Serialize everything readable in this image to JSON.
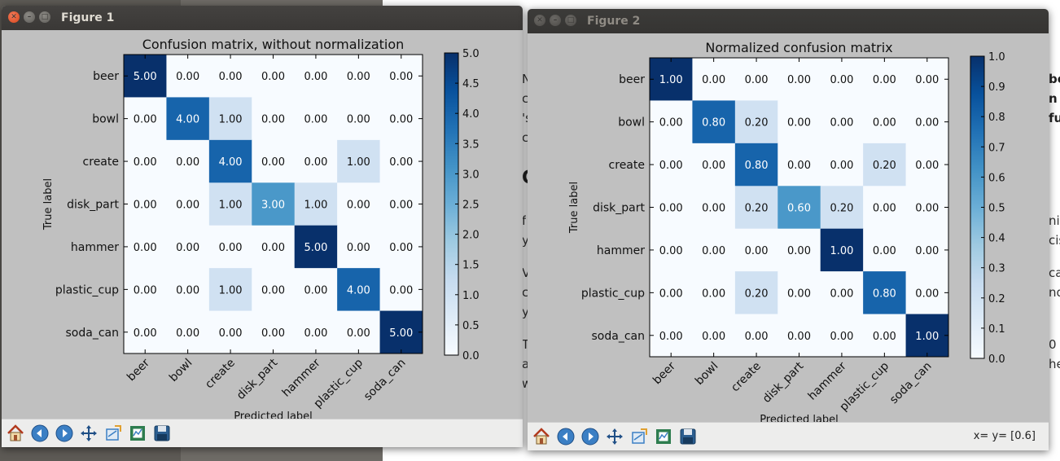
{
  "background": {
    "snippets_mid": [
      "N",
      "c",
      "'s",
      "c",
      "C",
      "f",
      "y",
      "V",
      "c",
      "y",
      "T",
      "a",
      "w"
    ],
    "snippets_right": [
      "be",
      "n /",
      "ful"
    ],
    "snippets_right2": [
      "nit",
      "cis",
      "ca",
      "nd",
      "0",
      "he"
    ]
  },
  "windows": [
    {
      "title": "Figure 1",
      "active": true,
      "plot_title": "Confusion matrix, without normalization",
      "xlabel": "Predicted label",
      "ylabel": "True label",
      "colorbar_ticks": [
        "5.0",
        "4.5",
        "4.0",
        "3.5",
        "3.0",
        "2.5",
        "2.0",
        "1.5",
        "1.0",
        "0.5",
        "0.0"
      ],
      "coord_readout": ""
    },
    {
      "title": "Figure 2",
      "active": false,
      "plot_title": "Normalized confusion matrix",
      "xlabel": "Predicted label",
      "ylabel": "True label",
      "colorbar_ticks": [
        "1.0",
        "0.9",
        "0.8",
        "0.7",
        "0.6",
        "0.5",
        "0.4",
        "0.3",
        "0.2",
        "0.1",
        "0.0"
      ],
      "coord_readout": "x= y= [0.6]"
    }
  ],
  "toolbar_icons": [
    "home-icon",
    "back-arrow-icon",
    "forward-arrow-icon",
    "pan-move-icon",
    "zoom-rect-icon",
    "configure-subplots-icon",
    "save-disk-icon"
  ],
  "colors": {
    "cmap_light": "#f7fbff",
    "cmap_dark": "#08306b",
    "figure_bg": "#c0c0c0"
  },
  "chart_data": [
    {
      "type": "heatmap",
      "title": "Confusion matrix, without normalization",
      "xlabel": "Predicted label",
      "ylabel": "True label",
      "x": [
        "beer",
        "bowl",
        "create",
        "disk_part",
        "hammer",
        "plastic_cup",
        "soda_can"
      ],
      "y": [
        "beer",
        "bowl",
        "create",
        "disk_part",
        "hammer",
        "plastic_cup",
        "soda_can"
      ],
      "values": [
        [
          "5.00",
          "0.00",
          "0.00",
          "0.00",
          "0.00",
          "0.00",
          "0.00"
        ],
        [
          "0.00",
          "4.00",
          "1.00",
          "0.00",
          "0.00",
          "0.00",
          "0.00"
        ],
        [
          "0.00",
          "0.00",
          "4.00",
          "0.00",
          "0.00",
          "1.00",
          "0.00"
        ],
        [
          "0.00",
          "0.00",
          "1.00",
          "3.00",
          "1.00",
          "0.00",
          "0.00"
        ],
        [
          "0.00",
          "0.00",
          "0.00",
          "0.00",
          "5.00",
          "0.00",
          "0.00"
        ],
        [
          "0.00",
          "0.00",
          "1.00",
          "0.00",
          "0.00",
          "4.00",
          "0.00"
        ],
        [
          "0.00",
          "0.00",
          "0.00",
          "0.00",
          "0.00",
          "0.00",
          "5.00"
        ]
      ],
      "vmin": 0,
      "vmax": 5,
      "colorbar_ticks": [
        "5.0",
        "4.5",
        "4.0",
        "3.5",
        "3.0",
        "2.5",
        "2.0",
        "1.5",
        "1.0",
        "0.5",
        "0.0"
      ]
    },
    {
      "type": "heatmap",
      "title": "Normalized confusion matrix",
      "xlabel": "Predicted label",
      "ylabel": "True label",
      "x": [
        "beer",
        "bowl",
        "create",
        "disk_part",
        "hammer",
        "plastic_cup",
        "soda_can"
      ],
      "y": [
        "beer",
        "bowl",
        "create",
        "disk_part",
        "hammer",
        "plastic_cup",
        "soda_can"
      ],
      "values": [
        [
          "1.00",
          "0.00",
          "0.00",
          "0.00",
          "0.00",
          "0.00",
          "0.00"
        ],
        [
          "0.00",
          "0.80",
          "0.20",
          "0.00",
          "0.00",
          "0.00",
          "0.00"
        ],
        [
          "0.00",
          "0.00",
          "0.80",
          "0.00",
          "0.00",
          "0.20",
          "0.00"
        ],
        [
          "0.00",
          "0.00",
          "0.20",
          "0.60",
          "0.20",
          "0.00",
          "0.00"
        ],
        [
          "0.00",
          "0.00",
          "0.00",
          "0.00",
          "1.00",
          "0.00",
          "0.00"
        ],
        [
          "0.00",
          "0.00",
          "0.20",
          "0.00",
          "0.00",
          "0.80",
          "0.00"
        ],
        [
          "0.00",
          "0.00",
          "0.00",
          "0.00",
          "0.00",
          "0.00",
          "1.00"
        ]
      ],
      "vmin": 0,
      "vmax": 1,
      "colorbar_ticks": [
        "1.0",
        "0.9",
        "0.8",
        "0.7",
        "0.6",
        "0.5",
        "0.4",
        "0.3",
        "0.2",
        "0.1",
        "0.0"
      ]
    }
  ]
}
